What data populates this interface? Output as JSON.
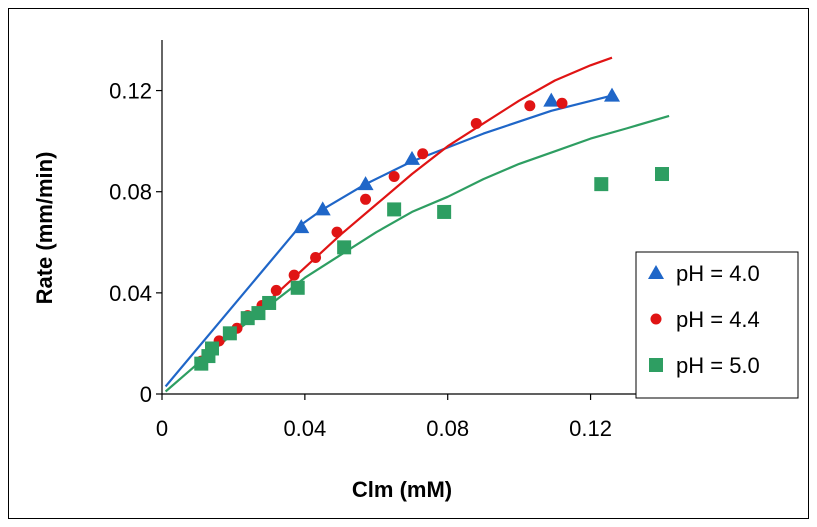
{
  "chart_data": {
    "type": "scatter",
    "title": "",
    "xlabel": "Clm (mM)",
    "ylabel": "Rate (mm/min)",
    "xlim": [
      0,
      0.14
    ],
    "ylim": [
      0,
      0.14
    ],
    "x_ticks": [
      0,
      0.04,
      0.08,
      0.12
    ],
    "x_tick_labels": [
      "0",
      "0.04",
      "0.08",
      "0.12"
    ],
    "y_ticks": [
      0,
      0.04,
      0.08,
      0.12
    ],
    "y_tick_labels": [
      "0",
      "0.04",
      "0.08",
      "0.12"
    ],
    "grid": false,
    "legend_position": "right",
    "series": [
      {
        "name": "pH = 4.0",
        "marker": "triangle",
        "color": "#1f66c8",
        "points": [
          [
            0.039,
            0.066
          ],
          [
            0.045,
            0.073
          ],
          [
            0.057,
            0.083
          ],
          [
            0.07,
            0.093
          ],
          [
            0.109,
            0.116
          ],
          [
            0.126,
            0.118
          ]
        ],
        "fit": [
          [
            0.001,
            0.003
          ],
          [
            0.039,
            0.067
          ],
          [
            0.045,
            0.073
          ],
          [
            0.057,
            0.083
          ],
          [
            0.07,
            0.092
          ],
          [
            0.09,
            0.103
          ],
          [
            0.109,
            0.112
          ],
          [
            0.126,
            0.118
          ]
        ]
      },
      {
        "name": "pH = 4.4",
        "marker": "circle",
        "color": "#e01414",
        "points": [
          [
            0.011,
            0.013
          ],
          [
            0.013,
            0.016
          ],
          [
            0.016,
            0.021
          ],
          [
            0.021,
            0.026
          ],
          [
            0.024,
            0.031
          ],
          [
            0.028,
            0.035
          ],
          [
            0.032,
            0.041
          ],
          [
            0.037,
            0.047
          ],
          [
            0.043,
            0.054
          ],
          [
            0.049,
            0.064
          ],
          [
            0.057,
            0.077
          ],
          [
            0.065,
            0.086
          ],
          [
            0.073,
            0.095
          ],
          [
            0.088,
            0.107
          ],
          [
            0.103,
            0.114
          ],
          [
            0.112,
            0.115
          ]
        ],
        "fit": [
          [
            0.01,
            0.013
          ],
          [
            0.02,
            0.025
          ],
          [
            0.03,
            0.037
          ],
          [
            0.04,
            0.05
          ],
          [
            0.05,
            0.063
          ],
          [
            0.06,
            0.075
          ],
          [
            0.07,
            0.087
          ],
          [
            0.08,
            0.098
          ],
          [
            0.09,
            0.107
          ],
          [
            0.1,
            0.116
          ],
          [
            0.11,
            0.124
          ],
          [
            0.12,
            0.13
          ],
          [
            0.126,
            0.133
          ]
        ]
      },
      {
        "name": "pH = 5.0",
        "marker": "square",
        "color": "#2e9e62",
        "points": [
          [
            0.011,
            0.012
          ],
          [
            0.013,
            0.015
          ],
          [
            0.014,
            0.018
          ],
          [
            0.019,
            0.024
          ],
          [
            0.024,
            0.03
          ],
          [
            0.027,
            0.032
          ],
          [
            0.03,
            0.036
          ],
          [
            0.038,
            0.042
          ],
          [
            0.051,
            0.058
          ],
          [
            0.065,
            0.073
          ],
          [
            0.079,
            0.072
          ],
          [
            0.123,
            0.083
          ],
          [
            0.14,
            0.087
          ]
        ],
        "fit": [
          [
            0.001,
            0.001
          ],
          [
            0.01,
            0.012
          ],
          [
            0.02,
            0.024
          ],
          [
            0.03,
            0.035
          ],
          [
            0.04,
            0.046
          ],
          [
            0.05,
            0.055
          ],
          [
            0.06,
            0.064
          ],
          [
            0.07,
            0.072
          ],
          [
            0.08,
            0.078
          ],
          [
            0.09,
            0.085
          ],
          [
            0.1,
            0.091
          ],
          [
            0.11,
            0.096
          ],
          [
            0.12,
            0.101
          ],
          [
            0.13,
            0.105
          ],
          [
            0.142,
            0.11
          ]
        ]
      }
    ]
  }
}
